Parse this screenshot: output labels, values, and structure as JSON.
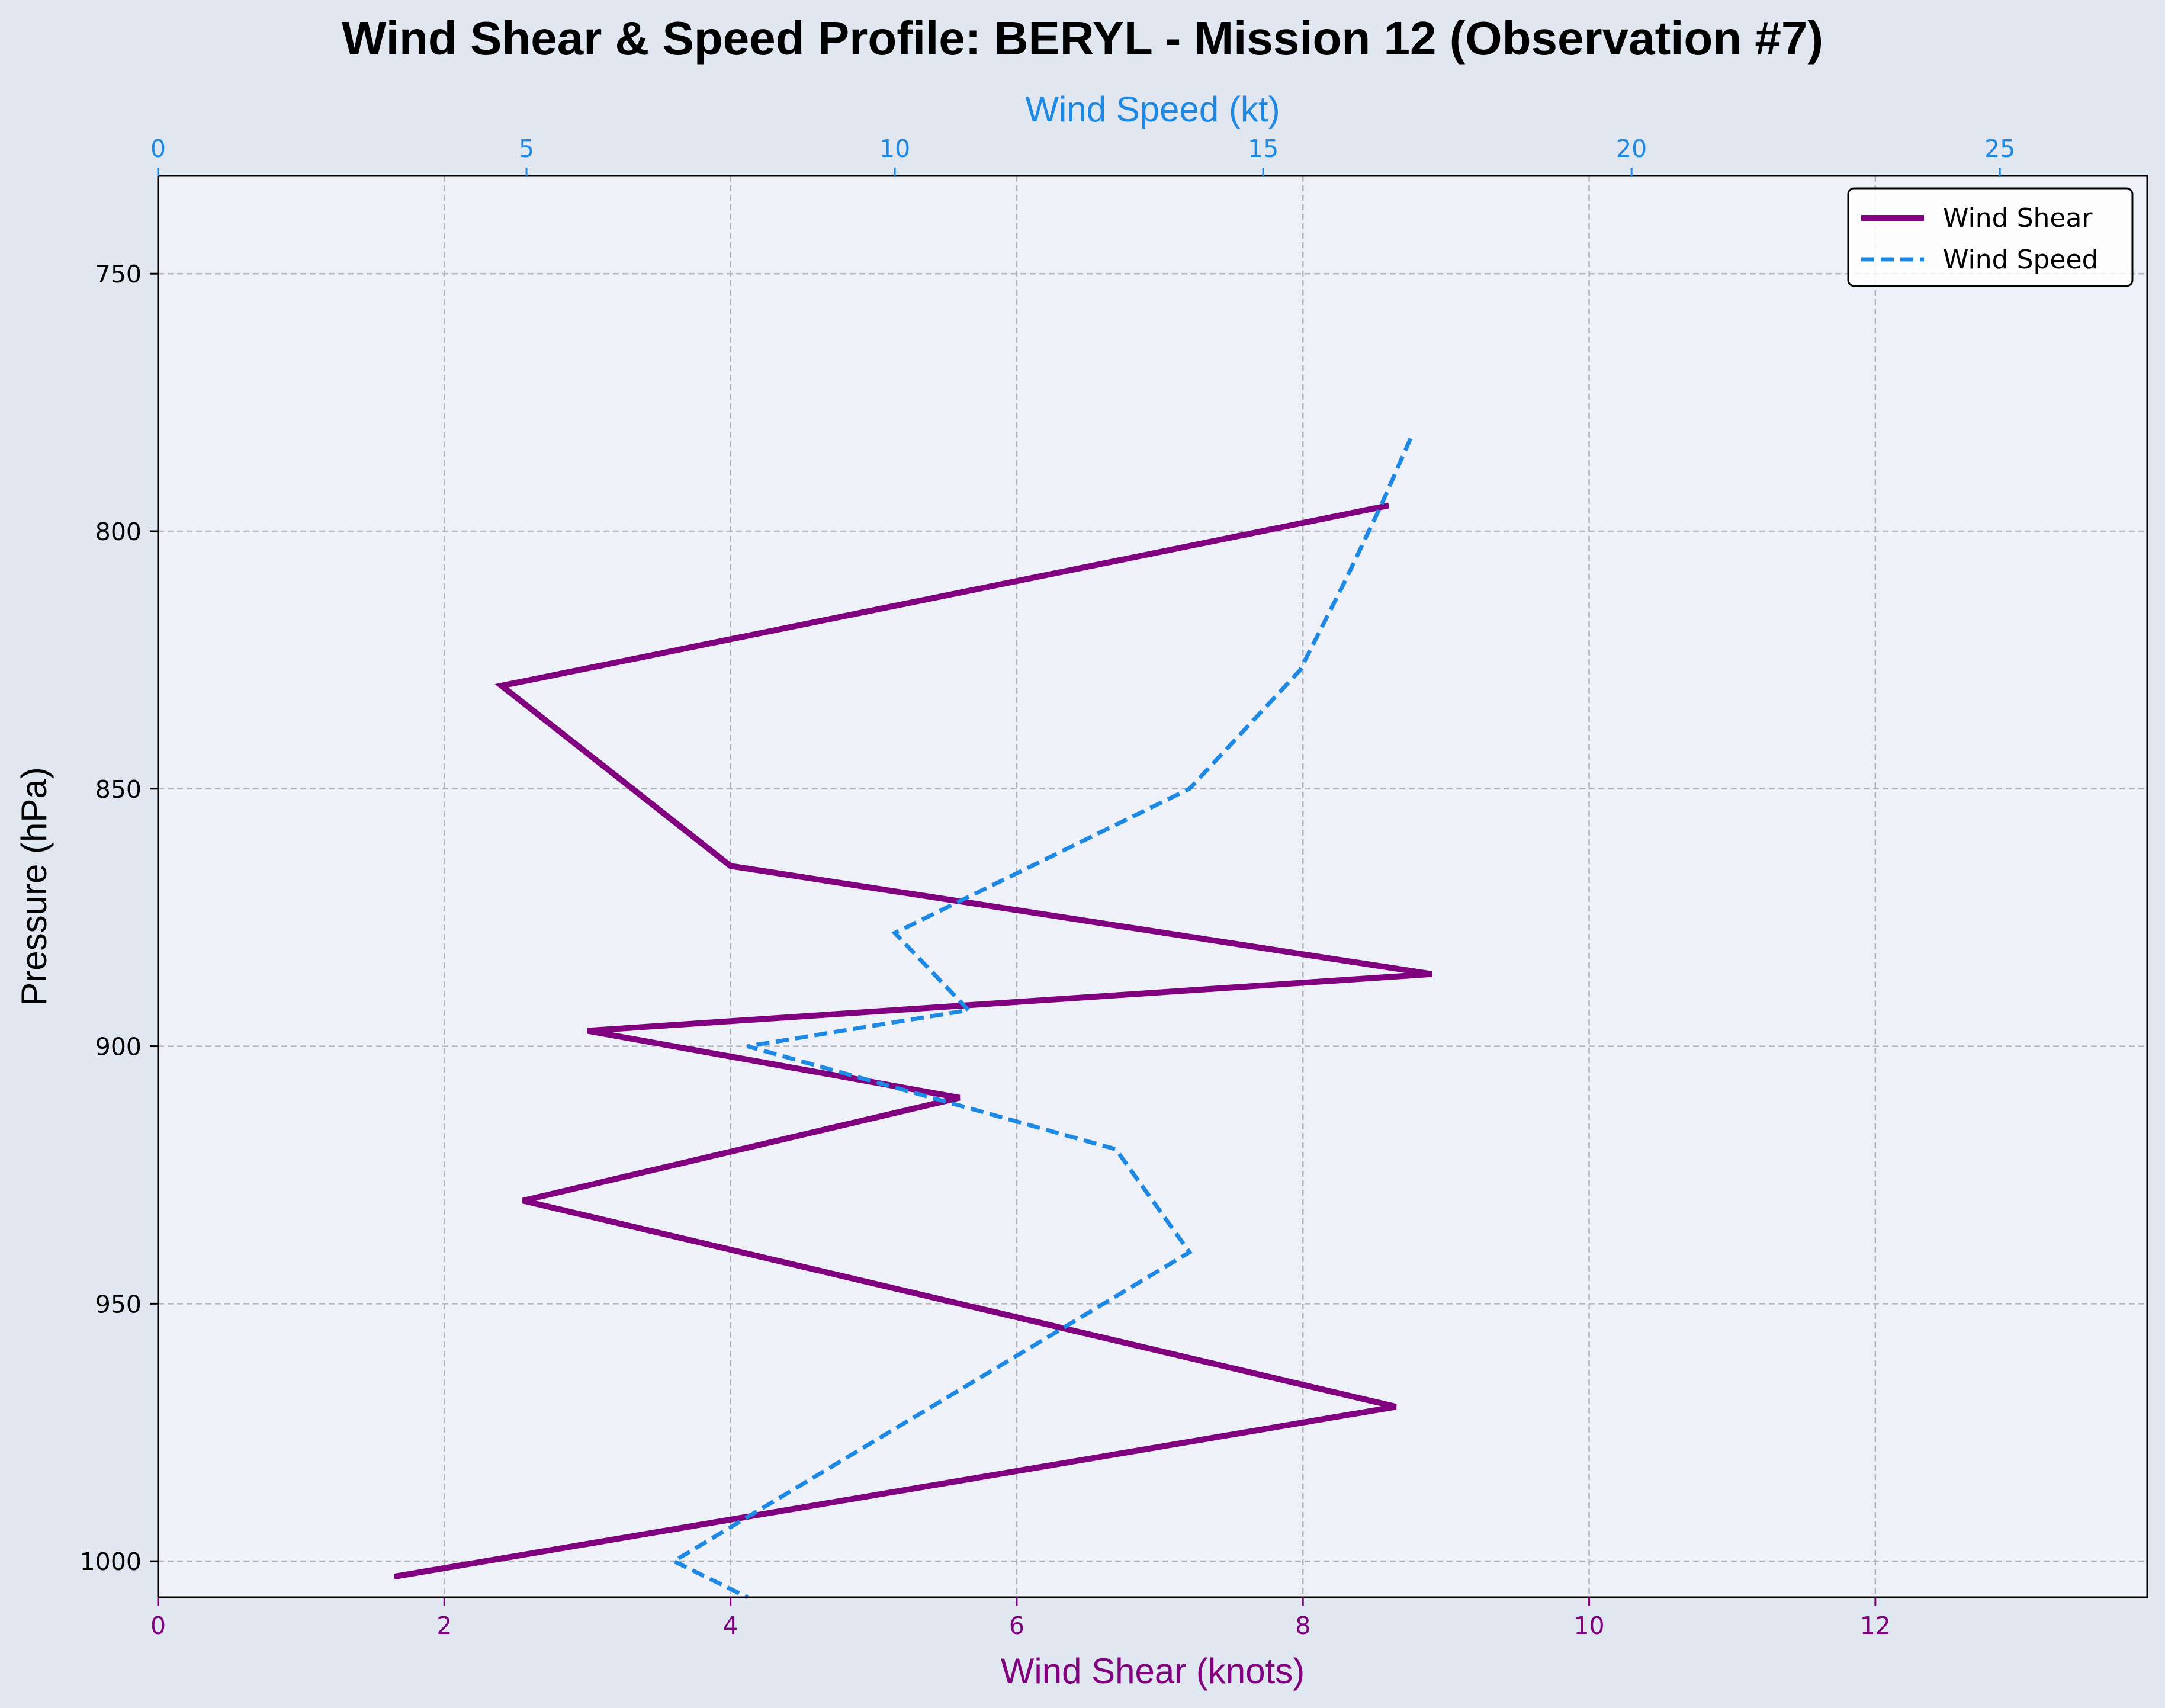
{
  "chart_data": {
    "type": "line",
    "title": "Wind Shear & Speed Profile: BERYL - Mission 12 (Observation #7)",
    "ylabel": "Pressure (hPa)",
    "ylim": [
      1007,
      731
    ],
    "y_inverted": true,
    "y_ticks": [
      750,
      800,
      850,
      900,
      950,
      1000
    ],
    "x_bottom": {
      "label": "Wind Shear (knots)",
      "lim": [
        0,
        13.9
      ],
      "ticks": [
        0,
        2,
        4,
        6,
        8,
        10,
        12
      ],
      "color": "#800080"
    },
    "x_top": {
      "label": "Wind Speed (kt)",
      "lim": [
        0,
        27
      ],
      "ticks": [
        0,
        5,
        10,
        15,
        20,
        25
      ],
      "color": "#1e88e5"
    },
    "grid": true,
    "legend_position": "top-right",
    "series": [
      {
        "name": "Wind Shear",
        "axis": "bottom",
        "color": "#800080",
        "style": "solid",
        "x": [
          8.6,
          2.4,
          4.0,
          8.9,
          3.0,
          5.6,
          2.55,
          8.65,
          1.65
        ],
        "y": [
          795,
          830,
          865,
          886,
          897,
          910,
          930,
          970,
          1003
        ]
      },
      {
        "name": "Wind Speed",
        "axis": "top",
        "color": "#1e88e5",
        "style": "dashed",
        "x": [
          17.0,
          16.6,
          16.1,
          15.5,
          14.0,
          10.0,
          11.0,
          8.0,
          13.0,
          14.0,
          7.0,
          8.0
        ],
        "y": [
          782,
          795,
          810,
          827,
          850,
          878,
          893,
          900,
          920,
          940,
          1000,
          1007
        ]
      }
    ]
  }
}
